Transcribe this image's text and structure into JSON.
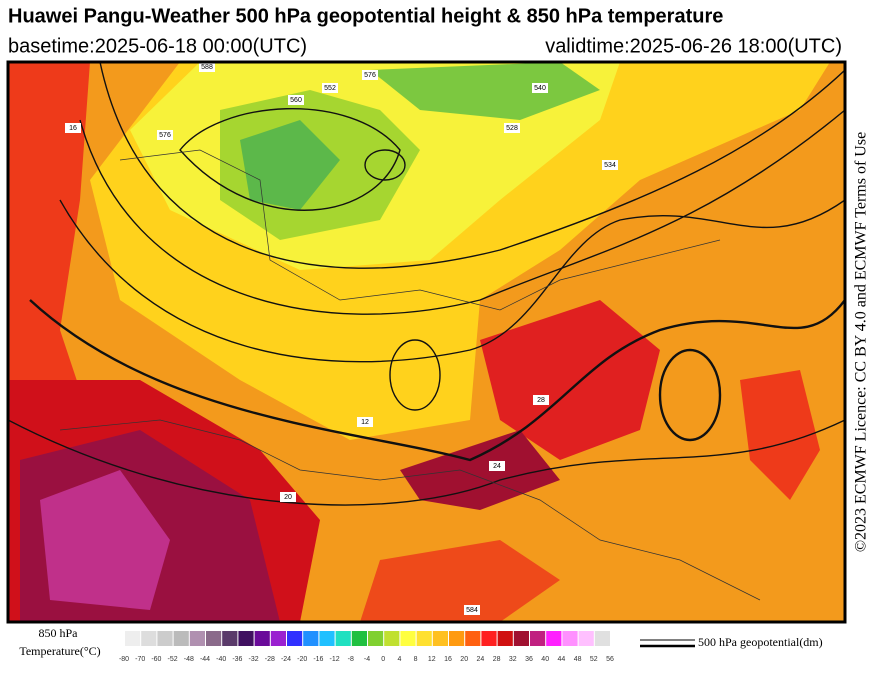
{
  "header": {
    "title": "Huawei Pangu-Weather 500 hPa geopotential height & 850 hPa temperature",
    "basetime": "basetime:2025-06-18 00:00(UTC)",
    "validtime": "validtime:2025-06-26 18:00(UTC)"
  },
  "licence": "©2023 ECMWF Licence: CC BY 4.0 and ECMWF Terms of Use",
  "legend": {
    "temperature_title_line1": "850 hPa",
    "temperature_title_line2": "Temperature(°C)",
    "geopotential_label": "500 hPa geopotential(dm)",
    "ticks": [
      -80,
      -70,
      -60,
      -52,
      -48,
      -44,
      -40,
      -36,
      -32,
      -28,
      -24,
      -20,
      -16,
      -12,
      -8,
      -4,
      0,
      4,
      8,
      12,
      16,
      20,
      24,
      28,
      32,
      36,
      40,
      44,
      48,
      52,
      56
    ],
    "colors": [
      "#eeeeee",
      "#dddddd",
      "#cccccc",
      "#bbbbbb",
      "#b090b0",
      "#8a6a8a",
      "#5a3a6a",
      "#401060",
      "#6a0a9a",
      "#9a20d0",
      "#3030ff",
      "#2090ff",
      "#20c0ff",
      "#20e0c0",
      "#20c040",
      "#80d030",
      "#c0e030",
      "#ffff40",
      "#ffe030",
      "#ffc020",
      "#ff9a10",
      "#ff6010",
      "#ff2020",
      "#d01010",
      "#a01030",
      "#c02080",
      "#ff20ff",
      "#ff90ff",
      "#ffc0ff",
      "#e0e0e0"
    ]
  },
  "map": {
    "contour_labels": [
      "588",
      "576",
      "560",
      "552",
      "540",
      "528",
      "534",
      "584",
      "576",
      "16",
      "12",
      "20",
      "24",
      "28"
    ]
  }
}
